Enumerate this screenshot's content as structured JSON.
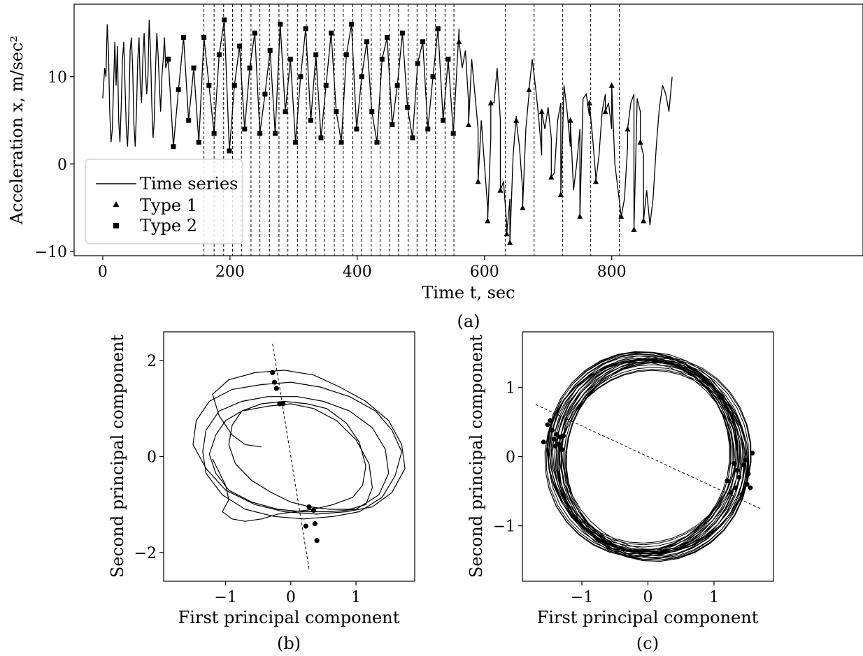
{
  "chart_data": [
    {
      "panel": "a",
      "type": "line",
      "caption": "(a)",
      "xlabel": "Time t, sec",
      "ylabel": "Acceleration x, m/sec²",
      "xlim": [
        -45,
        1195
      ],
      "ylim": [
        -10.5,
        18.3
      ],
      "xticks": [
        0,
        200,
        400,
        600,
        800
      ],
      "yticks": [
        -10,
        0,
        10
      ],
      "legend_position": "lower-left",
      "legend": [
        "Time series",
        "Type 1",
        "Type 2"
      ],
      "series": [
        {
          "name": "Time series",
          "style": "line",
          "x": [
            0,
            3,
            5,
            7,
            9,
            11,
            13,
            15,
            17,
            19,
            21,
            23,
            25,
            27,
            29,
            31,
            33,
            35,
            37,
            39,
            41,
            43,
            45,
            47,
            49,
            51,
            53,
            55,
            57,
            59,
            61,
            63,
            65,
            67,
            69,
            71,
            73,
            75,
            77,
            79,
            81,
            83,
            85,
            87,
            89,
            91,
            93,
            95,
            97,
            99,
            560,
            565,
            570,
            575,
            580,
            585,
            590,
            595,
            600,
            605,
            610,
            615,
            620,
            625,
            630,
            635,
            640,
            645,
            650,
            655,
            660,
            665,
            670,
            675,
            680,
            685,
            690,
            695,
            700,
            705,
            710,
            715,
            720,
            725,
            730,
            735,
            740,
            745,
            750,
            755,
            760,
            765,
            770,
            775,
            780,
            785,
            790,
            795,
            800,
            805,
            810,
            815,
            820,
            825,
            830,
            835,
            840,
            845,
            850,
            855,
            860,
            865,
            870,
            875,
            880,
            885,
            890,
            895
          ],
          "y": [
            7.5,
            11.0,
            10.0,
            16.0,
            13.0,
            6.0,
            2.5,
            4.0,
            9.0,
            14.0,
            9.0,
            13.5,
            5.0,
            2.5,
            6.5,
            12.0,
            14.0,
            9.0,
            4.0,
            2.0,
            6.0,
            13.0,
            14.5,
            11.0,
            4.5,
            2.0,
            6.0,
            12.0,
            14.5,
            9.0,
            7.0,
            12.0,
            15.0,
            11.0,
            8.0,
            10.0,
            16.5,
            13.0,
            7.0,
            3.0,
            5.0,
            11.0,
            15.0,
            12.5,
            9.0,
            6.0,
            10.0,
            12.0,
            14.5,
            11.0,
            15.5,
            11.0,
            13.0,
            7.0,
            12.0,
            8.0,
            4.0,
            5.0,
            0.0,
            -5.0,
            3.0,
            7.0,
            11.0,
            5.0,
            -2.0,
            -7.0,
            -4.0,
            1.0,
            5.5,
            2.0,
            -3.0,
            4.0,
            8.0,
            12.0,
            9.0,
            5.5,
            1.0,
            4.0,
            6.5,
            3.0,
            -1.0,
            5.0,
            7.0,
            9.0,
            6.0,
            2.0,
            -3.0,
            0.0,
            4.0,
            7.5,
            8.0,
            5.5,
            3.0,
            -1.5,
            1.0,
            6.0,
            8.0,
            7.0,
            4.0,
            0.0,
            -3.0,
            -6.0,
            -4.0,
            2.0,
            7.0,
            8.0,
            7.5,
            6.0,
            1.0,
            -3.0,
            -7.0,
            -4.0,
            2.0,
            6.5,
            9.0,
            8.0,
            6.0,
            10.0
          ]
        },
        {
          "name": "Type 2",
          "marker": "square",
          "x": [
            103,
            111,
            119,
            127,
            135,
            143,
            151,
            159,
            167,
            175,
            183,
            191,
            199,
            207,
            215,
            223,
            231,
            239,
            247,
            255,
            263,
            271,
            279,
            287,
            295,
            303,
            311,
            319,
            327,
            335,
            343,
            351,
            359,
            367,
            375,
            383,
            391,
            399,
            407,
            415,
            423,
            431,
            439,
            447,
            455,
            463,
            471,
            479,
            487,
            495,
            503,
            511,
            519,
            527,
            535,
            543,
            551
          ],
          "y": [
            12.0,
            2.0,
            8.5,
            14.5,
            5.0,
            11.0,
            2.5,
            14.5,
            9.0,
            3.5,
            12.5,
            16.5,
            1.5,
            9.0,
            13.5,
            4.0,
            11.0,
            15.0,
            3.5,
            8.0,
            13.0,
            3.5,
            16.0,
            6.0,
            12.0,
            2.5,
            10.0,
            15.5,
            5.0,
            12.5,
            3.0,
            9.0,
            15.0,
            6.0,
            2.5,
            12.5,
            16.0,
            4.0,
            10.0,
            14.0,
            6.0,
            2.5,
            12.0,
            14.5,
            4.5,
            9.0,
            15.0,
            6.5,
            3.0,
            11.5,
            14.0,
            4.0,
            10.0,
            15.5,
            5.0,
            12.0,
            3.5
          ]
        },
        {
          "name": "Type 1",
          "marker": "triangle",
          "x": [
            560,
            575,
            590,
            605,
            610,
            625,
            635,
            640,
            650,
            660,
            670,
            690,
            705,
            720,
            735,
            750,
            765,
            775,
            790,
            800,
            815,
            825,
            835,
            845,
            850
          ],
          "y": [
            14.0,
            4.5,
            -2.0,
            -6.5,
            7.0,
            -3.0,
            -8.0,
            -9.0,
            5.0,
            -5.0,
            8.5,
            6.0,
            -1.5,
            -3.5,
            5.0,
            -6.0,
            7.0,
            -2.0,
            6.0,
            9.0,
            -6.0,
            4.0,
            -7.5,
            2.5,
            -6.5
          ]
        }
      ],
      "vertical_dashed_lines_x": [
        159,
        175,
        190,
        204,
        218,
        233,
        247,
        262,
        277,
        291,
        306,
        320,
        335,
        349,
        364,
        378,
        393,
        407,
        422,
        436,
        451,
        465,
        480,
        494,
        509,
        523,
        538,
        552,
        633,
        678,
        723,
        767,
        812
      ]
    },
    {
      "panel": "b",
      "type": "line",
      "caption": "(b)",
      "xlabel": "First principal component",
      "ylabel": "Second principal component",
      "xlim": [
        -1.95,
        1.9
      ],
      "ylim": [
        -2.6,
        2.6
      ],
      "xticks": [
        -1,
        0,
        1
      ],
      "yticks": [
        -2,
        0,
        2
      ],
      "orbit": {
        "x": [
          -1.2,
          -1.0,
          -0.95,
          -1.05,
          -0.9,
          -0.7,
          -0.45,
          -0.2,
          0.05,
          0.35,
          0.65,
          0.95,
          1.1,
          1.15,
          1.05,
          0.85,
          0.55,
          0.25,
          -0.1,
          -0.45,
          -0.75,
          -0.9,
          -0.95,
          -0.85,
          -0.6,
          -0.3,
          0.0,
          0.3,
          0.6,
          0.9,
          1.15,
          1.25,
          1.2,
          1.0,
          0.7,
          0.35,
          0.0,
          -0.35,
          -0.75,
          -1.0,
          -1.15,
          -1.25,
          -1.15,
          -0.95,
          -0.6,
          -0.2,
          0.2,
          0.6,
          1.0,
          1.35,
          1.5,
          1.45,
          1.25,
          0.9,
          0.5,
          0.1,
          -0.35,
          -0.75,
          -1.1,
          -1.3,
          -1.35,
          -1.3,
          -1.05,
          -0.7,
          -0.25,
          0.2,
          0.65,
          1.05,
          1.4,
          1.6,
          1.7,
          1.55,
          1.3,
          0.9,
          0.45,
          0.0,
          -0.45,
          -0.9,
          -1.25,
          -1.45,
          -1.5,
          -1.3,
          -1.0,
          -0.55,
          -0.1,
          0.4,
          0.85,
          1.25,
          1.55,
          1.75,
          1.7,
          1.5,
          1.15,
          0.75,
          0.35,
          -0.1,
          -0.55,
          -0.95,
          -1.2,
          -1.1,
          -0.9,
          -0.7,
          -0.45
        ],
        "y": [
          -0.05,
          -0.6,
          -0.9,
          -1.15,
          -1.3,
          -1.35,
          -1.3,
          -1.2,
          -1.15,
          -1.1,
          -1.0,
          -0.85,
          -0.6,
          -0.2,
          0.3,
          0.7,
          1.0,
          1.1,
          1.15,
          1.1,
          0.95,
          0.65,
          0.25,
          -0.15,
          -0.5,
          -0.75,
          -0.95,
          -1.05,
          -1.1,
          -1.1,
          -1.0,
          -0.65,
          -0.15,
          0.35,
          0.75,
          1.0,
          1.1,
          1.05,
          0.95,
          0.75,
          0.45,
          0.05,
          -0.35,
          -0.7,
          -0.95,
          -1.1,
          -1.15,
          -1.15,
          -1.1,
          -0.8,
          -0.35,
          0.15,
          0.6,
          0.95,
          1.15,
          1.25,
          1.25,
          1.15,
          0.95,
          0.55,
          0.1,
          -0.35,
          -0.8,
          -1.1,
          -1.25,
          -1.3,
          -1.25,
          -1.15,
          -0.85,
          -0.4,
          0.1,
          0.55,
          0.95,
          1.25,
          1.45,
          1.55,
          1.5,
          1.4,
          1.15,
          0.75,
          0.25,
          -0.25,
          -0.7,
          -1.0,
          -1.15,
          -1.2,
          -1.15,
          -1.05,
          -0.75,
          -0.25,
          0.25,
          0.75,
          1.15,
          1.45,
          1.7,
          1.8,
          1.75,
          1.6,
          1.3,
          0.85,
          0.45,
          0.25,
          0.2
        ]
      },
      "section_line": {
        "x": [
          -0.28,
          0.28
        ],
        "y": [
          2.35,
          -2.35
        ]
      },
      "section_points": {
        "x": [
          -0.28,
          -0.25,
          -0.22,
          -0.17,
          -0.12,
          0.28,
          0.35,
          0.37,
          0.23,
          0.4
        ],
        "y": [
          1.75,
          1.55,
          1.42,
          1.1,
          1.1,
          -1.05,
          -1.12,
          -1.4,
          -1.45,
          -1.75
        ]
      }
    },
    {
      "panel": "c",
      "type": "line",
      "caption": "(c)",
      "xlabel": "First principal component",
      "ylabel": "Second principal component",
      "xlim": [
        -1.9,
        1.9
      ],
      "ylim": [
        -1.8,
        1.8
      ],
      "xticks": [
        -1,
        0,
        1
      ],
      "yticks": [
        -1,
        0,
        1
      ],
      "orbit": {
        "turns": 30,
        "radius": 1.4,
        "radius_spread": 0.17,
        "start_phase": 0.3,
        "steps_per_turn": 36
      },
      "section_line": {
        "x": [
          -1.7,
          1.7
        ],
        "y": [
          0.75,
          -0.75
        ]
      },
      "section_points": {
        "x": [
          -1.58,
          -1.52,
          -1.48,
          -1.45,
          -1.42,
          -1.4,
          -1.38,
          -1.35,
          -1.33,
          -1.3,
          -1.28,
          1.2,
          1.25,
          1.3,
          1.32,
          1.35,
          1.38,
          1.42,
          1.45,
          1.48,
          1.5,
          1.52,
          1.55,
          1.58
        ],
        "y": [
          0.21,
          0.46,
          0.52,
          0.38,
          0.25,
          0.15,
          0.32,
          0.18,
          0.28,
          0.1,
          0.3,
          -0.35,
          -0.52,
          -0.1,
          -0.45,
          -0.2,
          -0.3,
          -0.55,
          -0.12,
          -0.05,
          -0.4,
          -0.25,
          -0.45,
          0.05
        ]
      }
    }
  ]
}
